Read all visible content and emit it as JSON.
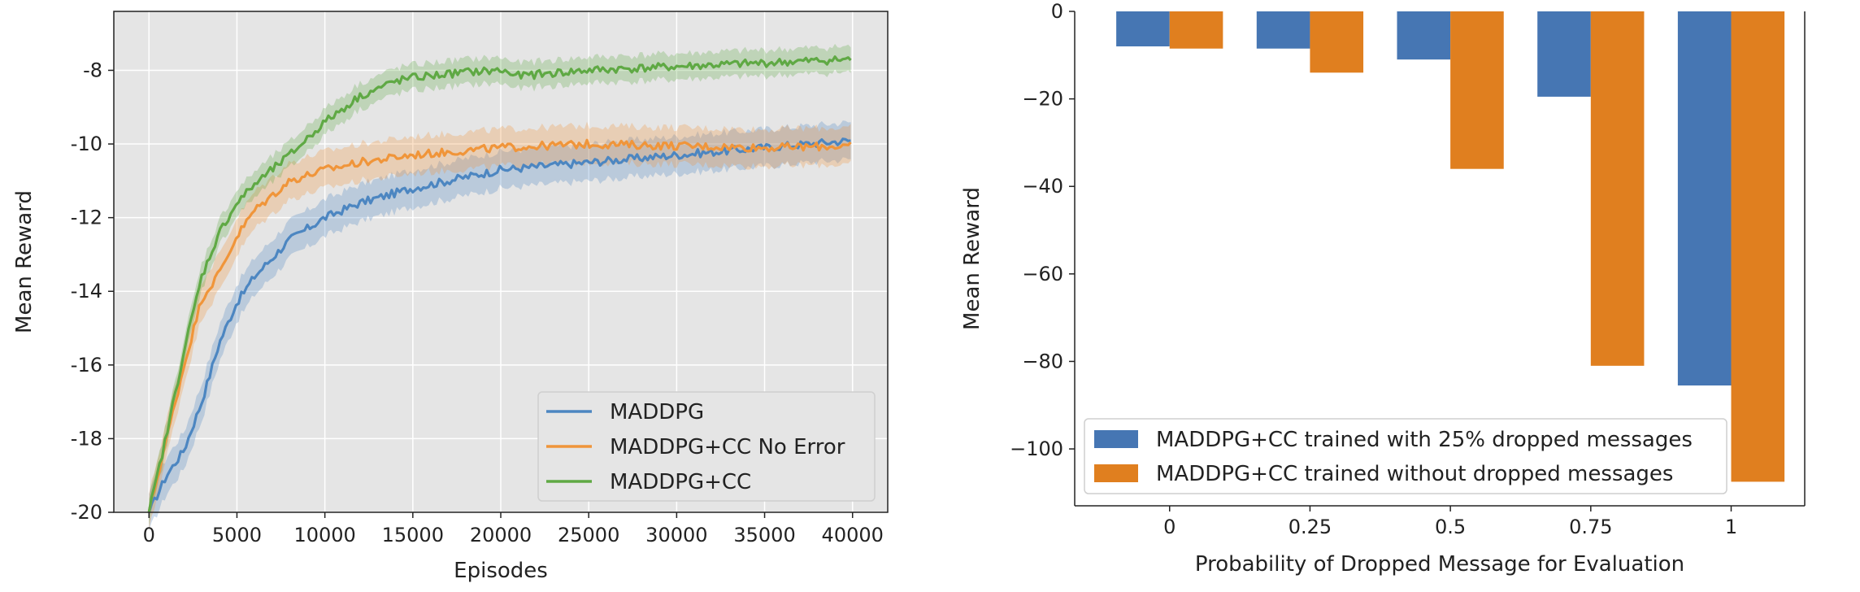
{
  "chart_data": [
    {
      "type": "line",
      "xlabel": "Episodes",
      "ylabel": "Mean Reward",
      "xlim": [
        -2000,
        42000
      ],
      "ylim": [
        -20,
        -6.4
      ],
      "xticks": [
        0,
        5000,
        10000,
        15000,
        20000,
        25000,
        30000,
        35000,
        40000
      ],
      "xtick_labels": [
        "0",
        "5000",
        "10000",
        "15000",
        "20000",
        "25000",
        "30000",
        "35000",
        "40000"
      ],
      "yticks": [
        -20,
        -18,
        -16,
        -14,
        -12,
        -10,
        -8
      ],
      "ytick_labels": [
        "-20",
        "-18",
        "-16",
        "-14",
        "-12",
        "-10",
        "-8"
      ],
      "grid": true,
      "legend_position": "lower-right",
      "series": [
        {
          "name": "MADDPG",
          "color": "#4c86c1",
          "x": [
            0,
            1000,
            2000,
            3000,
            4000,
            5000,
            6000,
            8000,
            10000,
            12000,
            15000,
            18000,
            20000,
            25000,
            30000,
            35000,
            40000
          ],
          "y": [
            -20.0,
            -19.0,
            -18.3,
            -17.0,
            -15.4,
            -14.3,
            -13.6,
            -12.6,
            -12.0,
            -11.6,
            -11.2,
            -10.9,
            -10.7,
            -10.5,
            -10.3,
            -10.1,
            -9.9
          ],
          "band": 0.5
        },
        {
          "name": "MADDPG+CC No Error",
          "color": "#f0953a",
          "x": [
            0,
            1000,
            2000,
            3000,
            4000,
            5000,
            6000,
            8000,
            10000,
            12000,
            15000,
            20000,
            25000,
            30000,
            35000,
            40000
          ],
          "y": [
            -20.0,
            -18.0,
            -16.0,
            -14.2,
            -13.5,
            -12.5,
            -11.8,
            -11.0,
            -10.7,
            -10.5,
            -10.3,
            -10.1,
            -10.0,
            -10.05,
            -10.1,
            -10.05
          ],
          "band": 0.5
        },
        {
          "name": "MADDPG+CC",
          "color": "#5fa944",
          "x": [
            0,
            1000,
            2000,
            3000,
            4000,
            5000,
            6000,
            8000,
            10000,
            12000,
            14000,
            15000,
            18000,
            20000,
            21000,
            25000,
            30000,
            35000,
            40000
          ],
          "y": [
            -20.0,
            -17.9,
            -15.6,
            -13.6,
            -12.4,
            -11.6,
            -11.1,
            -10.3,
            -9.4,
            -8.7,
            -8.3,
            -8.2,
            -8.05,
            -8.0,
            -8.15,
            -8.0,
            -7.9,
            -7.8,
            -7.7
          ],
          "band": 0.35
        }
      ]
    },
    {
      "type": "bar",
      "xlabel": "Probability of Dropped Message for Evaluation",
      "ylabel": "Mean Reward",
      "categories": [
        "0",
        "0.25",
        "0.5",
        "0.75",
        "1"
      ],
      "ylim": [
        -113,
        0
      ],
      "yticks": [
        0,
        -20,
        -40,
        -60,
        -80,
        -100
      ],
      "ytick_labels": [
        "0",
        "−20",
        "−40",
        "−60",
        "−80",
        "−100"
      ],
      "grid": false,
      "legend_position": "lower-left",
      "series": [
        {
          "name": "MADDPG+CC trained with 25% dropped messages",
          "color": "#4676b3",
          "values": [
            -8,
            -8.5,
            -11,
            -19.5,
            -85.5
          ]
        },
        {
          "name": "MADDPG+CC trained without dropped messages",
          "color": "#e07f1f",
          "values": [
            -8.5,
            -14,
            -36,
            -81,
            -107.5
          ]
        }
      ]
    }
  ]
}
